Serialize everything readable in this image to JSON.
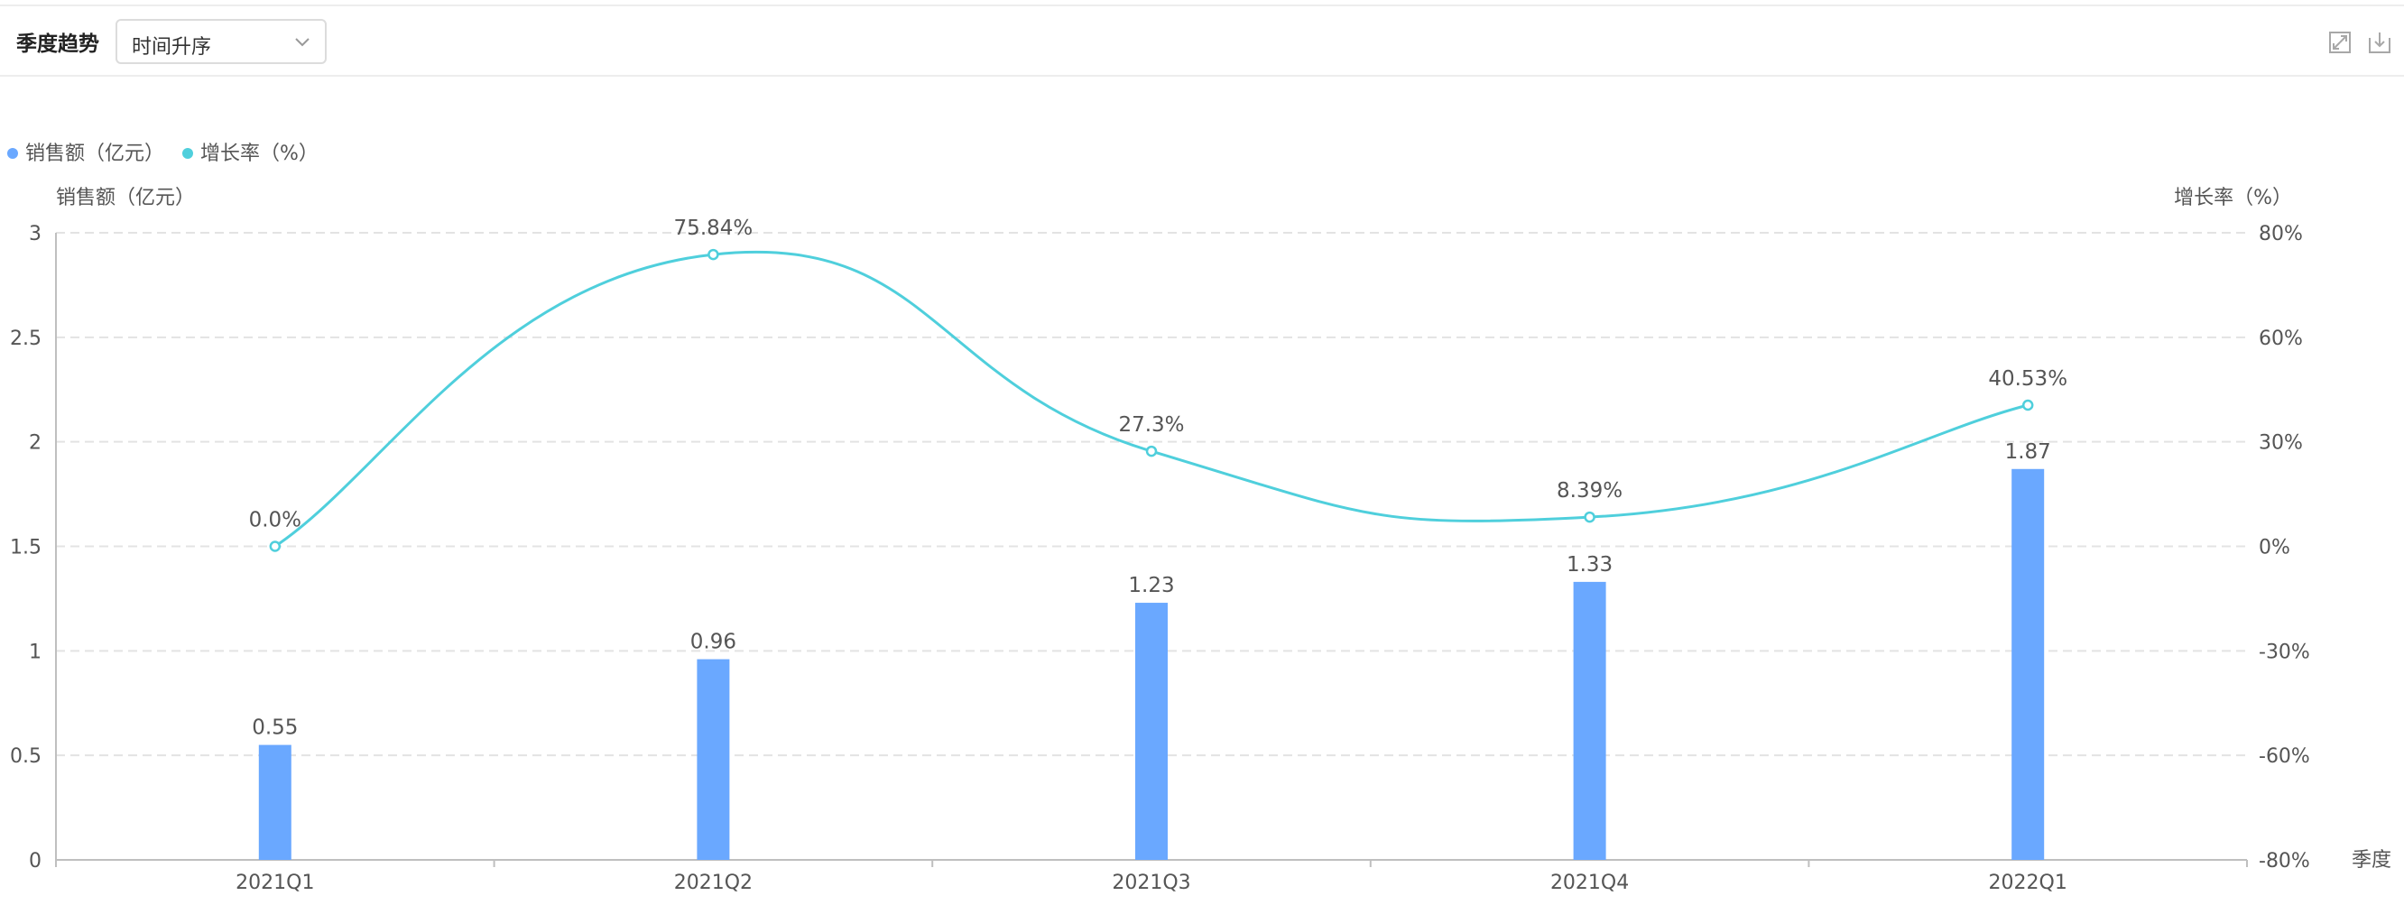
{
  "toolbar": {
    "title": "季度趋势",
    "sort_value": "时间升序",
    "icons": [
      "expand-icon",
      "download-icon"
    ]
  },
  "colors": {
    "bar": "#6aa8ff",
    "line": "#4fcfdc",
    "grid": "#e3e3e3",
    "axis": "#bfbfbf",
    "text": "#555555"
  },
  "chart_data": {
    "type": "bar+line",
    "categories": [
      "2021Q1",
      "2021Q2",
      "2021Q3",
      "2021Q4",
      "2022Q1"
    ],
    "series": [
      {
        "name": "销售额（亿元）",
        "type": "bar",
        "axis": "left",
        "values": [
          0.55,
          0.96,
          1.23,
          1.33,
          1.87
        ],
        "labels": [
          "0.55",
          "0.96",
          "1.23",
          "1.33",
          "1.87"
        ]
      },
      {
        "name": "增长率（%）",
        "type": "line",
        "axis": "right",
        "smooth": true,
        "values": [
          0.0,
          75.84,
          27.3,
          8.39,
          40.53
        ],
        "labels": [
          "0.0%",
          "75.84%",
          "27.3%",
          "8.39%",
          "40.53%"
        ]
      }
    ],
    "y_left": {
      "label": "销售额（亿元）",
      "min": 0,
      "max": 3,
      "ticks": [
        "0",
        "0.5",
        "1",
        "1.5",
        "2",
        "2.5",
        "3"
      ]
    },
    "y_right": {
      "label": "增长率（%）",
      "min": -80,
      "max": 80,
      "ticks": [
        "-80%",
        "-60%",
        "-30%",
        "0%",
        "30%",
        "60%",
        "80%"
      ]
    },
    "xlabel": "季度",
    "legend": "top-left",
    "grid": true
  }
}
